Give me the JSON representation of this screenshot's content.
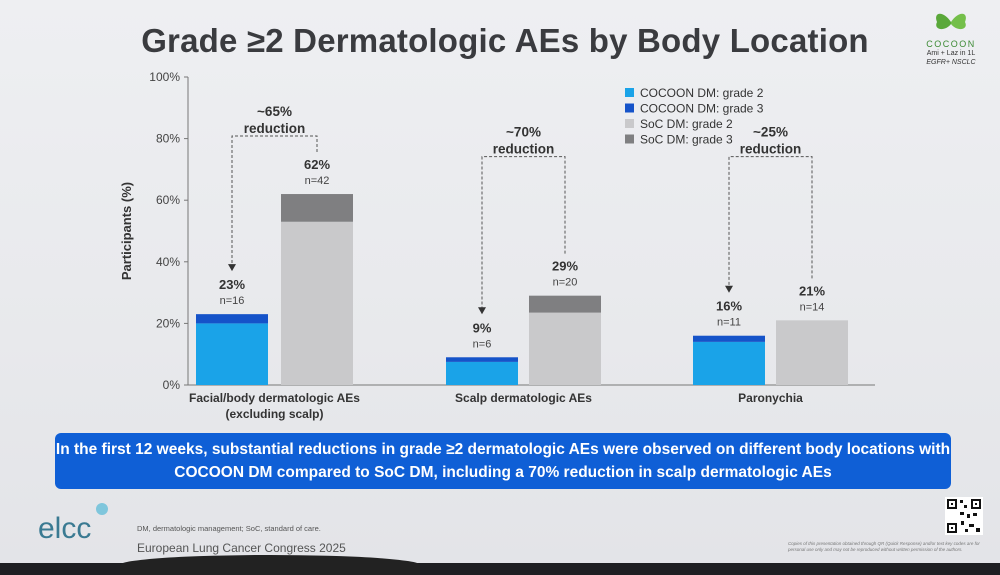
{
  "title": "Grade ≥2 Dermatologic AEs by Body Location",
  "logo": {
    "brand": "COCOON",
    "line1": "Ami + Laz in 1L",
    "line2": "EGFR+ NSCLC"
  },
  "colors": {
    "cocoon_grade2": "#1aa3e8",
    "cocoon_grade3": "#1553c9",
    "soc_grade2": "#c9c9cb",
    "soc_grade3": "#7f7f81",
    "banner": "#0f5fd6"
  },
  "chart_data": {
    "type": "bar",
    "stacked": true,
    "ylabel": "Participants (%)",
    "ylim": [
      0,
      100
    ],
    "yticks": [
      "0%",
      "20%",
      "40%",
      "60%",
      "80%",
      "100%"
    ],
    "categories": [
      "Facial/body dermatologic AEs (excluding scalp)",
      "Scalp dermatologic AEs",
      "Paronychia"
    ],
    "category_labels": [
      [
        "Facial/body dermatologic AEs",
        "(excluding scalp)"
      ],
      [
        "Scalp dermatologic AEs"
      ],
      [
        "Paronychia"
      ]
    ],
    "series": [
      {
        "name": "COCOON DM: grade 2",
        "group": "COCOON DM",
        "values": [
          20,
          7.5,
          14
        ]
      },
      {
        "name": "COCOON DM: grade 3",
        "group": "COCOON DM",
        "values": [
          3,
          1.5,
          2
        ]
      },
      {
        "name": "SoC DM: grade 2",
        "group": "SoC DM",
        "values": [
          53,
          23.5,
          21
        ]
      },
      {
        "name": "SoC DM: grade 3",
        "group": "SoC DM",
        "values": [
          9,
          5.5,
          0
        ]
      }
    ],
    "bar_labels": {
      "COCOON DM": [
        {
          "pct": "23%",
          "n": "n=16"
        },
        {
          "pct": "9%",
          "n": "n=6"
        },
        {
          "pct": "16%",
          "n": "n=11"
        }
      ],
      "SoC DM": [
        {
          "pct": "62%",
          "n": "n=42"
        },
        {
          "pct": "29%",
          "n": "n=20"
        },
        {
          "pct": "21%",
          "n": "n=14"
        }
      ]
    },
    "reductions": [
      [
        "~65%",
        "reduction"
      ],
      [
        "~70%",
        "reduction"
      ],
      [
        "~25%",
        "reduction"
      ]
    ],
    "legend_position": "top-right",
    "grid": false
  },
  "banner": "In the first 12 weeks, substantial reductions in grade ≥2 dermatologic AEs were observed on different body locations with COCOON DM compared to SoC DM, including a 70% reduction in scalp dermatologic AEs",
  "footer": {
    "logo": "elcc",
    "footnote": "DM, dermatologic management; SoC, standard of care.",
    "congress": "European Lung Cancer Congress 2025",
    "copyright": "Copies of this presentation obtained through QR (Quick Response) and/or text key codes are for personal use only and may not be reproduced without written permission of the authors."
  }
}
